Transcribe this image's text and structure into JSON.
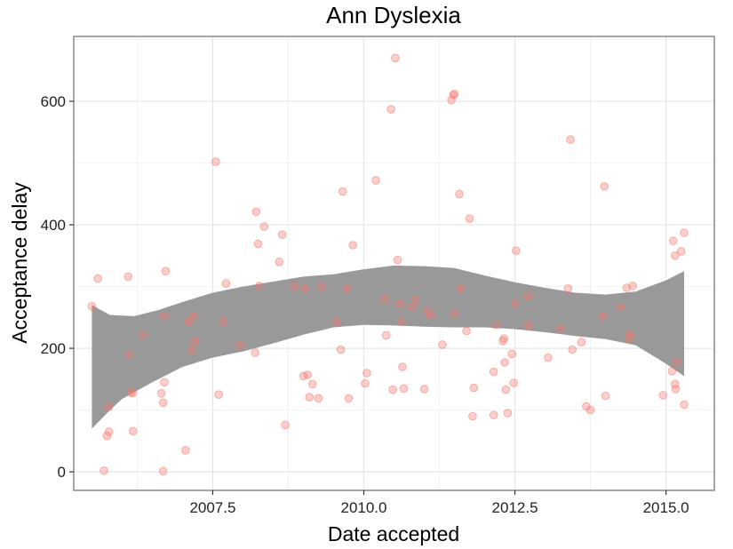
{
  "chart_data": {
    "type": "scatter",
    "title": "Ann Dyslexia",
    "xlabel": "Date accepted",
    "ylabel": "Acceptance delay",
    "xlim": [
      2005.2,
      2015.8
    ],
    "ylim": [
      -30,
      705
    ],
    "x_ticks": [
      {
        "value": 2007.5,
        "label": "2007.5"
      },
      {
        "value": 2010.0,
        "label": "2010.0"
      },
      {
        "value": 2012.5,
        "label": "2012.5"
      },
      {
        "value": 2015.0,
        "label": "2015.0"
      }
    ],
    "y_ticks": [
      {
        "value": 0,
        "label": "0"
      },
      {
        "value": 200,
        "label": "200"
      },
      {
        "value": 400,
        "label": "400"
      },
      {
        "value": 600,
        "label": "600"
      }
    ],
    "grid": true,
    "point_color": "#f8766d",
    "ribbon_color": "#999999",
    "points": [
      [
        5.5,
        268
      ],
      [
        5.6,
        313
      ],
      [
        5.7,
        2
      ],
      [
        5.75,
        58
      ],
      [
        5.78,
        65
      ],
      [
        5.78,
        105
      ],
      [
        6.1,
        316
      ],
      [
        6.12,
        190
      ],
      [
        6.15,
        128
      ],
      [
        6.18,
        128
      ],
      [
        6.18,
        66
      ],
      [
        6.35,
        221
      ],
      [
        6.65,
        127
      ],
      [
        6.68,
        112
      ],
      [
        6.68,
        1
      ],
      [
        6.7,
        145
      ],
      [
        6.72,
        325
      ],
      [
        6.7,
        253
      ],
      [
        7.05,
        35
      ],
      [
        7.1,
        243
      ],
      [
        7.15,
        197
      ],
      [
        7.18,
        252
      ],
      [
        7.2,
        211
      ],
      [
        7.55,
        502
      ],
      [
        7.6,
        125
      ],
      [
        7.68,
        243
      ],
      [
        7.72,
        305
      ],
      [
        7.95,
        205
      ],
      [
        8.2,
        193
      ],
      [
        8.22,
        421
      ],
      [
        8.25,
        369
      ],
      [
        8.27,
        301
      ],
      [
        8.35,
        397
      ],
      [
        8.6,
        340
      ],
      [
        8.65,
        384
      ],
      [
        8.7,
        76
      ],
      [
        8.85,
        300
      ],
      [
        9.0,
        155
      ],
      [
        9.02,
        297
      ],
      [
        9.07,
        157
      ],
      [
        9.1,
        121
      ],
      [
        9.15,
        142
      ],
      [
        9.25,
        119
      ],
      [
        9.3,
        300
      ],
      [
        9.55,
        243
      ],
      [
        9.62,
        198
      ],
      [
        9.65,
        454
      ],
      [
        9.72,
        297
      ],
      [
        9.75,
        119
      ],
      [
        9.82,
        367
      ],
      [
        10.02,
        143
      ],
      [
        10.05,
        160
      ],
      [
        10.2,
        472
      ],
      [
        10.35,
        279
      ],
      [
        10.37,
        221
      ],
      [
        10.45,
        587
      ],
      [
        10.48,
        133
      ],
      [
        10.52,
        670
      ],
      [
        10.56,
        343
      ],
      [
        10.6,
        272
      ],
      [
        10.62,
        243
      ],
      [
        10.64,
        170
      ],
      [
        10.66,
        135
      ],
      [
        10.8,
        267
      ],
      [
        10.85,
        278
      ],
      [
        11.0,
        134
      ],
      [
        11.05,
        261
      ],
      [
        11.1,
        253
      ],
      [
        11.3,
        206
      ],
      [
        11.45,
        602
      ],
      [
        11.48,
        610
      ],
      [
        11.5,
        612
      ],
      [
        11.5,
        256
      ],
      [
        11.58,
        450
      ],
      [
        11.6,
        297
      ],
      [
        11.7,
        228
      ],
      [
        11.75,
        410
      ],
      [
        11.8,
        90
      ],
      [
        11.82,
        136
      ],
      [
        12.15,
        162
      ],
      [
        12.15,
        92
      ],
      [
        12.18,
        238
      ],
      [
        12.3,
        212
      ],
      [
        12.32,
        216
      ],
      [
        12.33,
        177
      ],
      [
        12.35,
        133
      ],
      [
        12.38,
        95
      ],
      [
        12.45,
        191
      ],
      [
        12.48,
        144
      ],
      [
        12.5,
        273
      ],
      [
        12.52,
        358
      ],
      [
        12.72,
        237
      ],
      [
        12.72,
        285
      ],
      [
        13.05,
        185
      ],
      [
        13.25,
        232
      ],
      [
        13.38,
        297
      ],
      [
        13.42,
        538
      ],
      [
        13.45,
        198
      ],
      [
        13.6,
        210
      ],
      [
        13.68,
        106
      ],
      [
        13.75,
        100
      ],
      [
        13.95,
        252
      ],
      [
        13.98,
        462
      ],
      [
        14.0,
        123
      ],
      [
        14.25,
        267
      ],
      [
        14.35,
        298
      ],
      [
        14.38,
        216
      ],
      [
        14.4,
        222
      ],
      [
        14.45,
        301
      ],
      [
        14.95,
        124
      ],
      [
        15.1,
        163
      ],
      [
        15.12,
        374
      ],
      [
        15.15,
        142
      ],
      [
        15.15,
        350
      ],
      [
        15.16,
        134
      ],
      [
        15.18,
        178
      ],
      [
        15.25,
        357
      ],
      [
        15.3,
        109
      ],
      [
        15.3,
        387
      ]
    ],
    "ribbon_upper": [
      [
        5.5,
        270
      ],
      [
        5.8,
        254
      ],
      [
        6.2,
        252
      ],
      [
        6.6,
        262
      ],
      [
        7.0,
        275
      ],
      [
        7.5,
        290
      ],
      [
        8.0,
        300
      ],
      [
        8.5,
        308
      ],
      [
        9.0,
        316
      ],
      [
        9.5,
        320
      ],
      [
        10.0,
        328
      ],
      [
        10.5,
        334
      ],
      [
        11.0,
        333
      ],
      [
        11.5,
        330
      ],
      [
        12.0,
        318
      ],
      [
        12.5,
        307
      ],
      [
        13.0,
        298
      ],
      [
        13.5,
        290
      ],
      [
        14.0,
        287
      ],
      [
        14.5,
        292
      ],
      [
        15.0,
        310
      ],
      [
        15.3,
        325
      ]
    ],
    "ribbon_lower": [
      [
        15.3,
        155
      ],
      [
        15.0,
        175
      ],
      [
        14.5,
        205
      ],
      [
        14.0,
        215
      ],
      [
        13.5,
        220
      ],
      [
        13.0,
        226
      ],
      [
        12.5,
        231
      ],
      [
        12.0,
        234
      ],
      [
        11.5,
        234
      ],
      [
        11.0,
        235
      ],
      [
        10.5,
        237
      ],
      [
        10.0,
        238
      ],
      [
        9.5,
        234
      ],
      [
        9.0,
        222
      ],
      [
        8.5,
        208
      ],
      [
        8.0,
        195
      ],
      [
        7.5,
        185
      ],
      [
        7.0,
        170
      ],
      [
        6.5,
        145
      ],
      [
        6.0,
        118
      ],
      [
        5.8,
        100
      ],
      [
        5.5,
        70
      ]
    ]
  }
}
